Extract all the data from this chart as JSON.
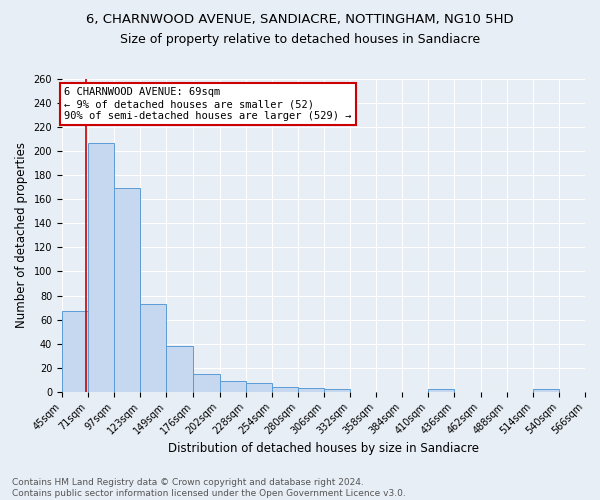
{
  "title": "6, CHARNWOOD AVENUE, SANDIACRE, NOTTINGHAM, NG10 5HD",
  "subtitle": "Size of property relative to detached houses in Sandiacre",
  "xlabel": "Distribution of detached houses by size in Sandiacre",
  "ylabel": "Number of detached properties",
  "bar_edges": [
    45,
    71,
    97,
    123,
    149,
    176,
    202,
    228,
    254,
    280,
    306,
    332,
    358,
    384,
    410,
    436,
    462,
    488,
    514,
    540,
    566
  ],
  "bar_heights": [
    67,
    207,
    169,
    73,
    38,
    15,
    9,
    7,
    4,
    3,
    2,
    0,
    0,
    0,
    2,
    0,
    0,
    0,
    2,
    0
  ],
  "bar_color": "#c5d8f0",
  "bar_edge_color": "#5b9bd5",
  "property_size": 69,
  "property_line_color": "#cc0000",
  "annotation_line1": "6 CHARNWOOD AVENUE: 69sqm",
  "annotation_line2": "← 9% of detached houses are smaller (52)",
  "annotation_line3": "90% of semi-detached houses are larger (529) →",
  "annotation_box_color": "#ffffff",
  "annotation_box_edge_color": "#cc0000",
  "ylim": [
    0,
    260
  ],
  "yticks": [
    0,
    20,
    40,
    60,
    80,
    100,
    120,
    140,
    160,
    180,
    200,
    220,
    240,
    260
  ],
  "footnote": "Contains HM Land Registry data © Crown copyright and database right 2024.\nContains public sector information licensed under the Open Government Licence v3.0.",
  "background_color": "#e8eef5",
  "plot_background_color": "#e8eef5",
  "grid_color": "#ffffff",
  "title_fontsize": 9.5,
  "subtitle_fontsize": 9,
  "axis_label_fontsize": 8.5,
  "tick_fontsize": 7,
  "annotation_fontsize": 7.5,
  "footnote_fontsize": 6.5
}
